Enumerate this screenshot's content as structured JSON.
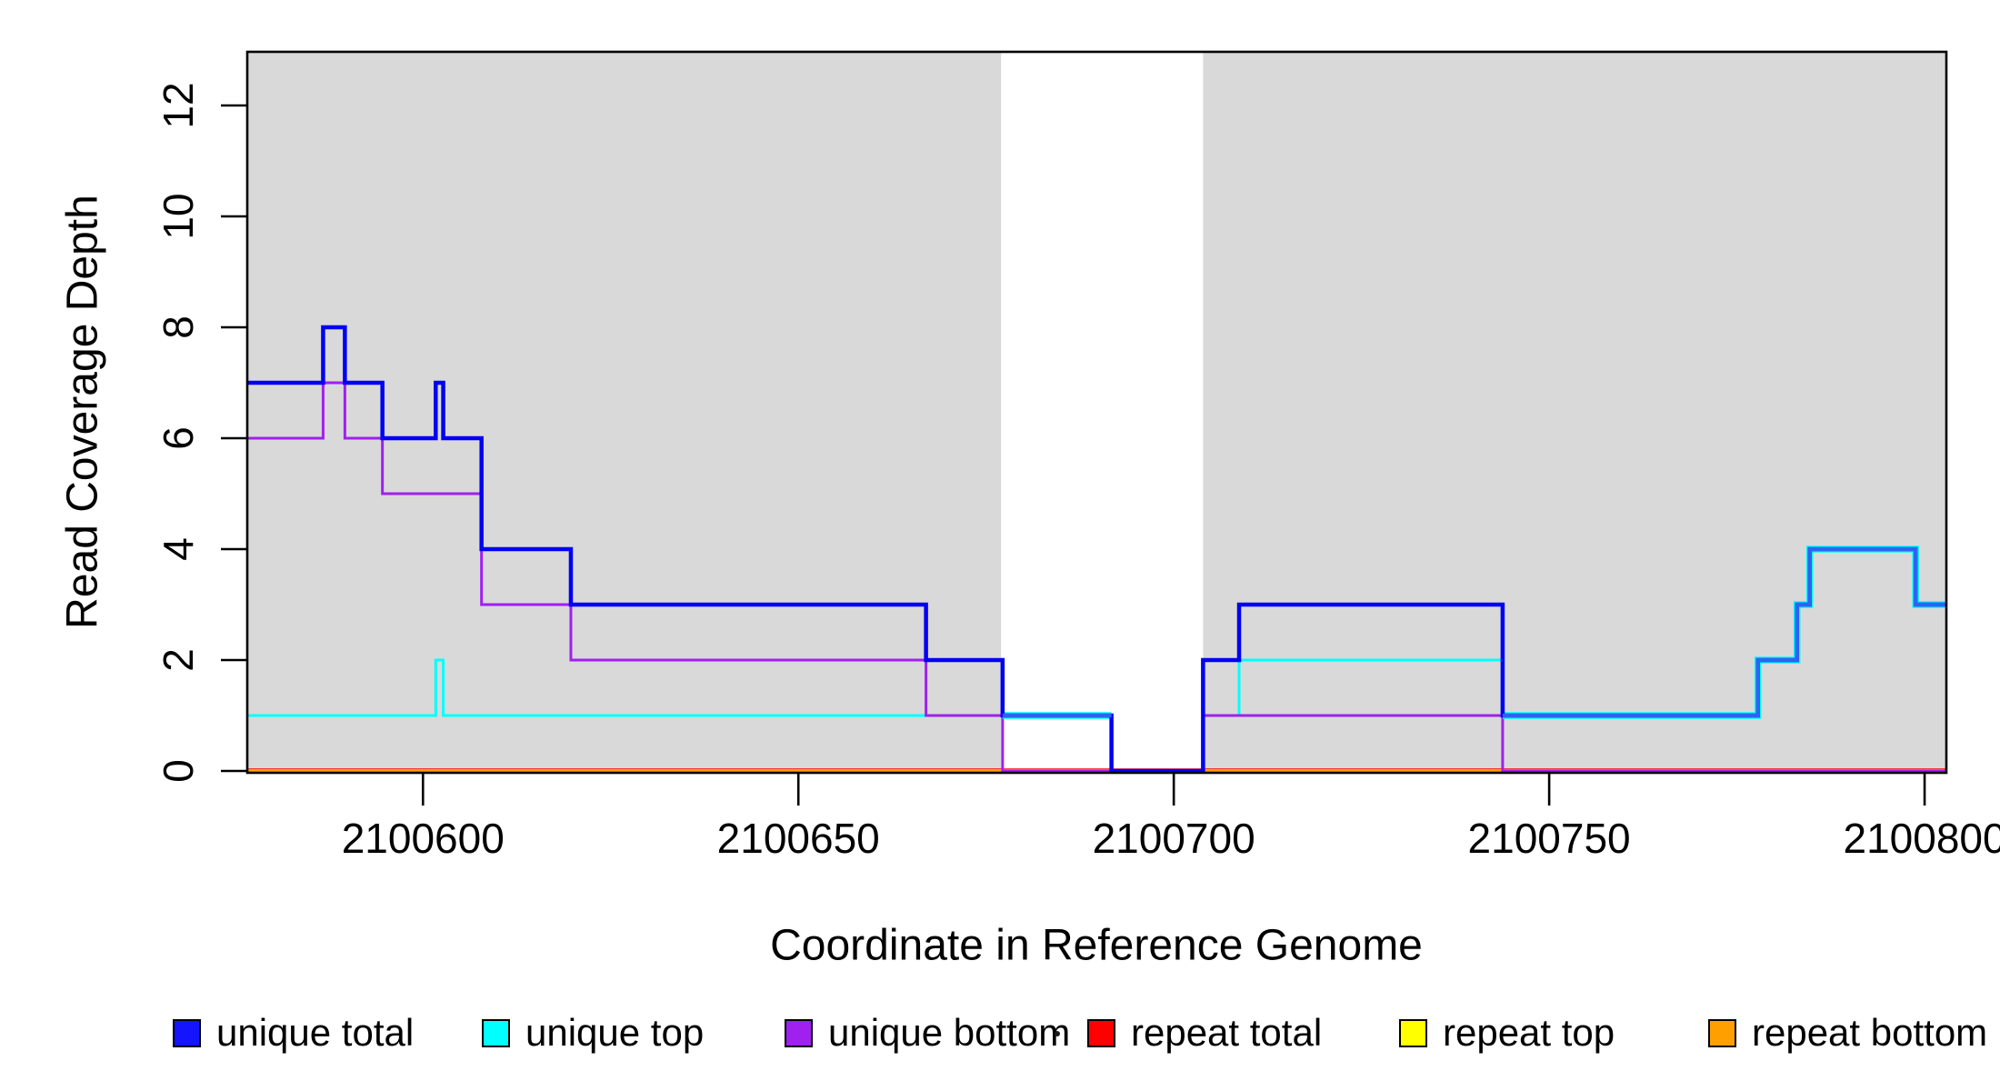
{
  "figure": {
    "background": "#ffffff"
  },
  "chart_data": {
    "type": "line",
    "subtype": "step-coverage",
    "title": "",
    "xlabel": "Coordinate in Reference Genome",
    "ylabel": "Read Coverage Depth",
    "xlim": [
      2100576.6,
      2100802.9
    ],
    "ylim": [
      0,
      13
    ],
    "grid": false,
    "x_ticks": [
      2100600,
      2100650,
      2100700,
      2100750,
      2100800
    ],
    "y_ticks": [
      0,
      2,
      4,
      6,
      8,
      10,
      12
    ],
    "plot_background": "#ffffff",
    "shaded_regions": {
      "color": "#D9D9D9",
      "ranges": [
        [
          2100576.6,
          2100677.0
        ],
        [
          2100703.9,
          2100802.9
        ]
      ]
    },
    "axis_color": "#000000",
    "series": [
      {
        "name": "unique total",
        "color": "#0000F2",
        "overlap_tint": "#2E63F2",
        "width": 4.5,
        "steps": [
          [
            2100576.6,
            7
          ],
          [
            2100586.7,
            8
          ],
          [
            2100589.6,
            7
          ],
          [
            2100594.6,
            6
          ],
          [
            2100601.7,
            7
          ],
          [
            2100602.7,
            6
          ],
          [
            2100607.8,
            4
          ],
          [
            2100619.7,
            3
          ],
          [
            2100667.0,
            2
          ],
          [
            2100677.2,
            1
          ],
          [
            2100691.7,
            0
          ],
          [
            2100703.9,
            2
          ],
          [
            2100708.7,
            3
          ],
          [
            2100743.8,
            1
          ],
          [
            2100777.8,
            2
          ],
          [
            2100783.0,
            3
          ],
          [
            2100784.7,
            4
          ],
          [
            2100798.8,
            3
          ]
        ],
        "end": 2100802.9
      },
      {
        "name": "unique top",
        "color": "#00FFFF",
        "width": 3,
        "steps": [
          [
            2100576.6,
            1
          ],
          [
            2100601.7,
            2
          ],
          [
            2100602.7,
            1
          ],
          [
            2100691.7,
            0
          ],
          [
            2100703.9,
            1
          ],
          [
            2100708.7,
            2
          ],
          [
            2100743.8,
            1
          ],
          [
            2100777.8,
            2
          ],
          [
            2100783.0,
            3
          ],
          [
            2100784.7,
            4
          ],
          [
            2100798.8,
            3
          ]
        ],
        "end": 2100802.9
      },
      {
        "name": "unique bottom",
        "color": "#A020F0",
        "width": 3,
        "steps": [
          [
            2100576.6,
            6
          ],
          [
            2100586.7,
            7
          ],
          [
            2100589.6,
            6
          ],
          [
            2100594.6,
            5
          ],
          [
            2100607.8,
            3
          ],
          [
            2100619.7,
            2
          ],
          [
            2100667.0,
            1
          ],
          [
            2100677.2,
            0
          ],
          [
            2100703.9,
            1
          ],
          [
            2100743.8,
            0
          ]
        ],
        "end": 2100802.9
      },
      {
        "name": "repeat total",
        "color": "#FF0000",
        "width": 5.5,
        "steps": [
          [
            2100576.6,
            0
          ]
        ],
        "end": 2100802.9
      },
      {
        "name": "repeat top",
        "color": "#FFFF00",
        "width": 3,
        "steps": [
          [
            2100576.6,
            0
          ]
        ],
        "end": 2100802.9
      },
      {
        "name": "repeat bottom",
        "color": "#FFA000",
        "width": 4,
        "steps": [
          [
            2100576.6,
            0
          ]
        ],
        "end": 2100802.9
      }
    ],
    "draw_order": [
      "repeat total",
      "repeat top",
      "repeat bottom",
      "unique top",
      "unique bottom",
      "unique total"
    ],
    "legend": {
      "position": "bottom",
      "entries": [
        {
          "label": "unique total",
          "color": "#1414FF"
        },
        {
          "label": "unique top",
          "color": "#00FFFF"
        },
        {
          "label": "unique bottom",
          "color": "#A020F0"
        },
        {
          "label": "repeat total",
          "color": "#FF0000"
        },
        {
          "label": "repeat top",
          "color": "#FFFF00"
        },
        {
          "label": "repeat bottom",
          "color": "#FFA000"
        }
      ]
    }
  }
}
